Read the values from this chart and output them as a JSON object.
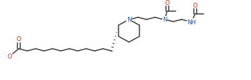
{
  "bg": "#ffffff",
  "bc": "#3d3d3d",
  "nc": "#1a50b0",
  "oc": "#c03010",
  "figsize": [
    3.6,
    1.16
  ],
  "dpi": 100,
  "lw": 1.1,
  "bl": 12.5,
  "fs": 6.2,
  "ring_r": 17,
  "xlim": [
    0,
    360
  ],
  "ylim": [
    0,
    116
  ]
}
